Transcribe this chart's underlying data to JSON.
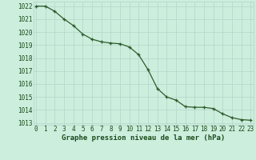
{
  "x": [
    0,
    1,
    2,
    3,
    4,
    5,
    6,
    7,
    8,
    9,
    10,
    11,
    12,
    13,
    14,
    15,
    16,
    17,
    18,
    19,
    20,
    21,
    22,
    23
  ],
  "y": [
    1022.0,
    1022.0,
    1021.6,
    1021.0,
    1020.5,
    1019.85,
    1019.45,
    1019.25,
    1019.15,
    1019.1,
    1018.85,
    1018.25,
    1017.1,
    1015.65,
    1015.0,
    1014.75,
    1014.25,
    1014.2,
    1014.2,
    1014.1,
    1013.7,
    1013.4,
    1013.25,
    1013.2
  ],
  "line_color": "#2d5c2d",
  "marker": "+",
  "bg_color": "#cceedd",
  "grid_major_color": "#b8d8cc",
  "grid_minor_color": "#c8e8dc",
  "xlabel": "Graphe pression niveau de la mer (hPa)",
  "xlabel_color": "#1a4a1a",
  "tick_color": "#1a4a1a",
  "ylim_min": 1013,
  "ylim_max": 1022,
  "ytick_step": 1,
  "xlim_min": 0,
  "xlim_max": 23,
  "tick_fontsize": 5.5,
  "xlabel_fontsize": 6.5
}
